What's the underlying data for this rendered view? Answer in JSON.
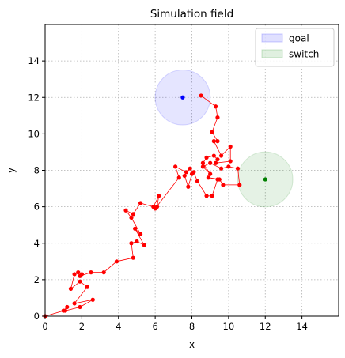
{
  "chart_data": {
    "type": "scatter",
    "title": "Simulation field",
    "xlabel": "x",
    "ylabel": "y",
    "xlim": [
      0,
      16
    ],
    "ylim": [
      0,
      16
    ],
    "xticks": [
      0,
      2,
      4,
      6,
      8,
      10,
      12,
      14
    ],
    "yticks": [
      0,
      2,
      4,
      6,
      8,
      10,
      12,
      14
    ],
    "grid": true,
    "legend_position": "top-right",
    "legend": [
      {
        "label": "goal",
        "color": "#0000ff"
      },
      {
        "label": "switch",
        "color": "#008000"
      }
    ],
    "regions": [
      {
        "name": "goal",
        "cx": 7.5,
        "cy": 12.0,
        "r": 1.5,
        "color": "#0000ff"
      },
      {
        "name": "switch",
        "cx": 12.0,
        "cy": 7.5,
        "r": 1.5,
        "color": "#008000"
      }
    ],
    "centers": [
      {
        "name": "goal",
        "x": 7.5,
        "y": 12.0,
        "color": "#0000ff"
      },
      {
        "name": "switch",
        "x": 12.0,
        "y": 7.5,
        "color": "#008000"
      }
    ],
    "trajectory_color": "#ff0000",
    "trajectory": [
      [
        0.0,
        0.0
      ],
      [
        1.0,
        0.3
      ],
      [
        1.2,
        0.5
      ],
      [
        1.1,
        0.3
      ],
      [
        1.9,
        0.5
      ],
      [
        2.6,
        0.9
      ],
      [
        1.6,
        0.7
      ],
      [
        2.3,
        1.6
      ],
      [
        1.9,
        1.9
      ],
      [
        1.4,
        1.5
      ],
      [
        1.6,
        2.3
      ],
      [
        1.8,
        2.4
      ],
      [
        2.0,
        2.3
      ],
      [
        1.9,
        2.2
      ],
      [
        2.5,
        2.4
      ],
      [
        3.2,
        2.4
      ],
      [
        3.9,
        3.0
      ],
      [
        4.8,
        3.2
      ],
      [
        4.7,
        4.0
      ],
      [
        5.0,
        4.1
      ],
      [
        5.4,
        3.9
      ],
      [
        4.9,
        4.8
      ],
      [
        5.2,
        4.5
      ],
      [
        4.7,
        5.4
      ],
      [
        4.4,
        5.8
      ],
      [
        4.8,
        5.6
      ],
      [
        5.2,
        6.2
      ],
      [
        5.9,
        6.0
      ],
      [
        6.2,
        6.6
      ],
      [
        6.1,
        6.0
      ],
      [
        6.0,
        5.9
      ],
      [
        7.3,
        7.6
      ],
      [
        7.1,
        8.2
      ],
      [
        7.7,
        7.9
      ],
      [
        7.9,
        8.1
      ],
      [
        7.6,
        7.7
      ],
      [
        7.8,
        7.1
      ],
      [
        8.0,
        7.8
      ],
      [
        8.1,
        7.9
      ],
      [
        8.3,
        7.4
      ],
      [
        8.8,
        6.6
      ],
      [
        9.1,
        6.6
      ],
      [
        9.4,
        7.5
      ],
      [
        8.9,
        7.6
      ],
      [
        9.5,
        7.5
      ],
      [
        9.7,
        7.2
      ],
      [
        10.6,
        7.2
      ],
      [
        10.5,
        8.1
      ],
      [
        10.0,
        8.2
      ],
      [
        9.6,
        8.1
      ],
      [
        9.0,
        8.4
      ],
      [
        8.6,
        8.2
      ],
      [
        9.0,
        7.8
      ],
      [
        8.6,
        8.4
      ],
      [
        8.8,
        8.7
      ],
      [
        9.2,
        8.8
      ],
      [
        9.4,
        8.6
      ],
      [
        9.3,
        8.4
      ],
      [
        10.1,
        8.5
      ],
      [
        10.1,
        9.3
      ],
      [
        9.6,
        8.8
      ],
      [
        9.2,
        9.6
      ],
      [
        9.4,
        9.6
      ],
      [
        9.1,
        10.1
      ],
      [
        9.4,
        10.9
      ],
      [
        9.3,
        11.5
      ],
      [
        8.5,
        12.1
      ]
    ]
  }
}
